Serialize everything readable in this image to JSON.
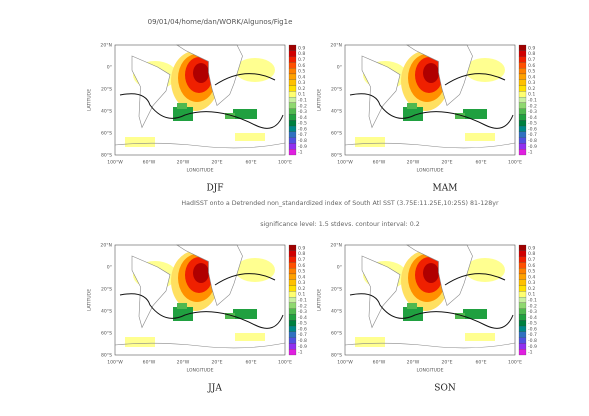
{
  "header": "09/01/04/home/dan/WORK/Algunos/Fig1e",
  "axes": {
    "ylabels": [
      "20°N",
      "0°",
      "20°S",
      "40°S",
      "60°S",
      "80°S"
    ],
    "xlabels": [
      "100°W",
      "60°W",
      "20°W",
      "20°E",
      "60°E",
      "100°E"
    ],
    "xaxis_title": "LONGITUDE",
    "yaxis_title": "LATITUDE"
  },
  "colorbar": {
    "labels": [
      "0.9",
      "0.8",
      "0.7",
      "0.6",
      "0.5",
      "0.4",
      "0.3",
      "0.2",
      "0.1",
      "-0.1",
      "-0.2",
      "-0.3",
      "-0.4",
      "-0.5",
      "-0.6",
      "-0.7",
      "-0.8",
      "-0.9",
      "-1"
    ],
    "colors": [
      "#a00000",
      "#d00000",
      "#f02000",
      "#ff5000",
      "#ff8000",
      "#ffa000",
      "#ffc000",
      "#ffe000",
      "#ffff70",
      "#c8f0a0",
      "#90d870",
      "#50b850",
      "#20a040",
      "#008040",
      "#008888",
      "#3070c0",
      "#5050e0",
      "#9030f0",
      "#e020e0"
    ]
  },
  "panels": [
    {
      "label": "DJF"
    },
    {
      "label": "MAM"
    },
    {
      "label": "JJA"
    },
    {
      "label": "SON"
    }
  ],
  "caption": {
    "line1": "HadISST onto a  Detrended non_standardized index of South Atl SST (3.75E:11.25E,10:25S) 81-128yr",
    "line2": "significance level: 1.5 stdevs. contour interval: 0.2"
  }
}
